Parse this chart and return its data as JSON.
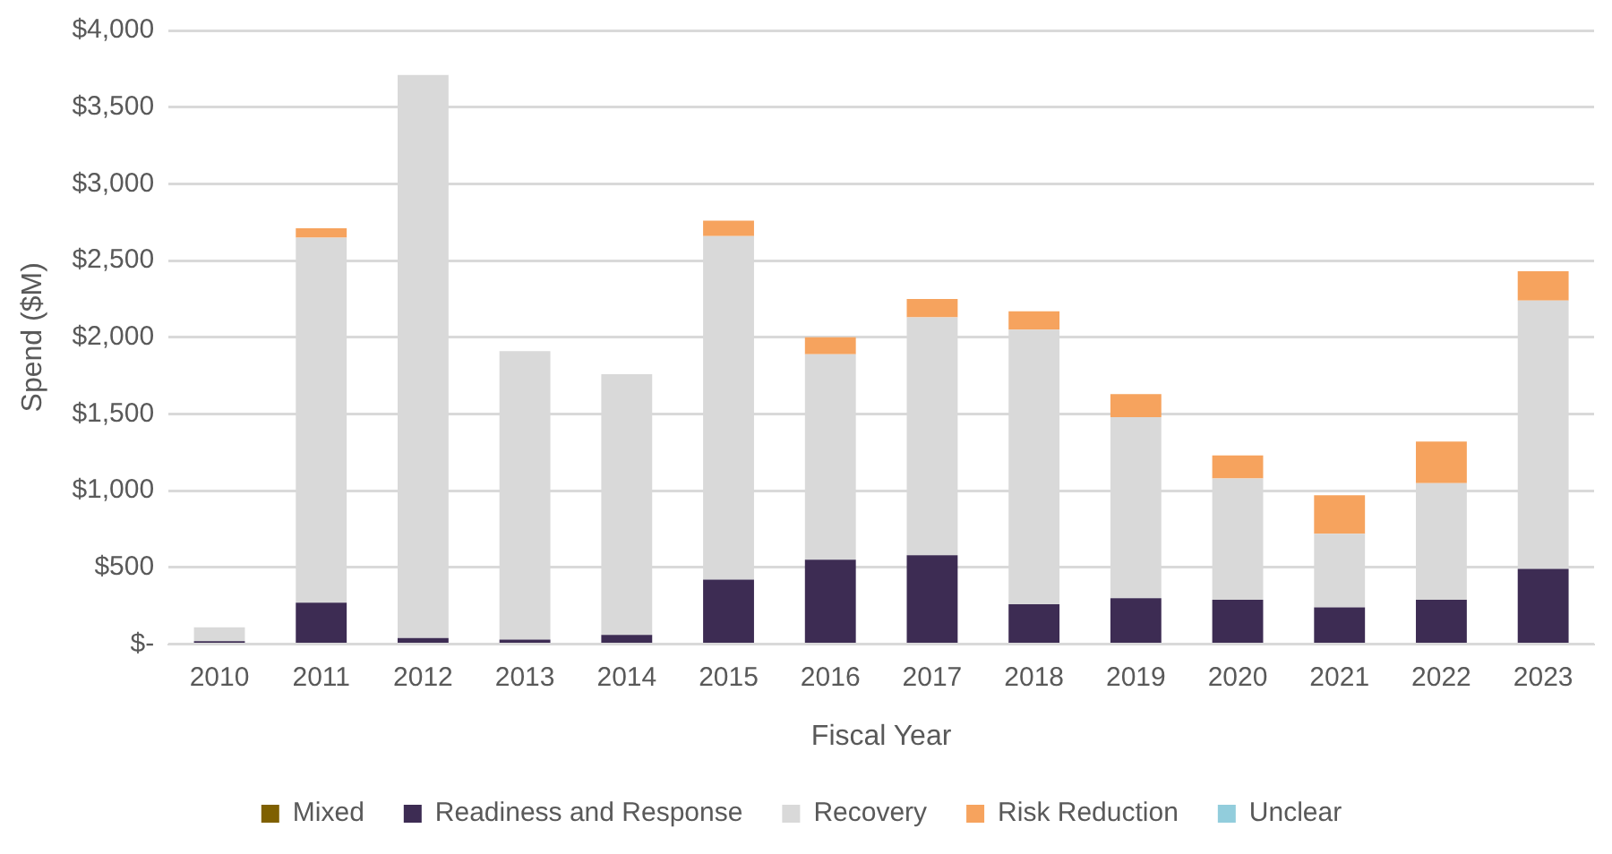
{
  "chart_data": {
    "type": "bar",
    "stacked": true,
    "xlabel": "Fiscal Year",
    "ylabel": "Spend ($M)",
    "categories": [
      "2010",
      "2011",
      "2012",
      "2013",
      "2014",
      "2015",
      "2016",
      "2017",
      "2018",
      "2019",
      "2020",
      "2021",
      "2022",
      "2023"
    ],
    "series": [
      {
        "name": "Mixed",
        "color": "#7f6000",
        "values": [
          0,
          0,
          0,
          0,
          0,
          0,
          0,
          0,
          0,
          0,
          0,
          0,
          0,
          10
        ]
      },
      {
        "name": "Readiness and Response",
        "color": "#3d2c53",
        "values": [
          20,
          270,
          40,
          30,
          60,
          420,
          550,
          580,
          260,
          300,
          290,
          240,
          290,
          480
        ]
      },
      {
        "name": "Recovery",
        "color": "#d9d9d9",
        "values": [
          90,
          2380,
          3670,
          1880,
          1700,
          2240,
          1340,
          1550,
          1790,
          1180,
          790,
          480,
          760,
          1750
        ]
      },
      {
        "name": "Risk Reduction",
        "color": "#f6a35e",
        "values": [
          0,
          60,
          0,
          0,
          0,
          100,
          110,
          120,
          120,
          150,
          150,
          250,
          270,
          190
        ]
      },
      {
        "name": "Unclear",
        "color": "#92cddc",
        "values": [
          0,
          0,
          0,
          0,
          0,
          0,
          0,
          0,
          0,
          0,
          0,
          0,
          0,
          0
        ]
      }
    ],
    "ylim": [
      0,
      4000
    ],
    "yticks": [
      {
        "value": 0,
        "label": "$-"
      },
      {
        "value": 500,
        "label": "$500"
      },
      {
        "value": 1000,
        "label": "$1,000"
      },
      {
        "value": 1500,
        "label": "$1,500"
      },
      {
        "value": 2000,
        "label": "$2,000"
      },
      {
        "value": 2500,
        "label": "$2,500"
      },
      {
        "value": 3000,
        "label": "$3,000"
      },
      {
        "value": 3500,
        "label": "$3,500"
      },
      {
        "value": 4000,
        "label": "$4,000"
      }
    ],
    "grid": "y",
    "legend": "bottom"
  }
}
